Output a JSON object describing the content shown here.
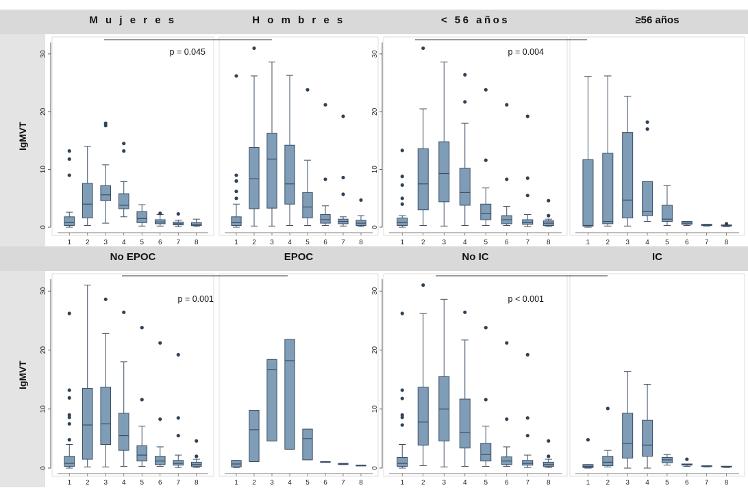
{
  "figure": {
    "ylabel": "IgMVT",
    "colors": {
      "box": "#7f9db7",
      "stroke": "#3a4d63",
      "outlier": "#2e4357",
      "band": "#d9d9d9",
      "panel": "#ffffff"
    }
  },
  "chart_data": [
    {
      "type": "box",
      "group": "top-left",
      "p_value": "p = 0.045",
      "ylabel": "IgMVT",
      "ylim": [
        0,
        32
      ],
      "yticks": [
        0,
        10,
        20,
        30
      ],
      "categories": [
        "1",
        "2",
        "3",
        "4",
        "5",
        "6",
        "7",
        "8"
      ],
      "panels": [
        {
          "title": "M u j e r e s",
          "boxes": [
            {
              "cat": "1",
              "min": 0,
              "q1": 0.3,
              "median": 0.8,
              "q3": 1.8,
              "max": 2.6,
              "outliers": [
                9,
                11.8,
                13.2
              ]
            },
            {
              "cat": "2",
              "min": 0.3,
              "q1": 1.6,
              "median": 4,
              "q3": 7.6,
              "max": 14
            },
            {
              "cat": "3",
              "min": 0.7,
              "q1": 4.6,
              "median": 5.6,
              "q3": 7.2,
              "max": 10.8,
              "outliers": [
                17.6,
                18
              ]
            },
            {
              "cat": "4",
              "min": 1.8,
              "q1": 3.2,
              "median": 3.8,
              "q3": 5.8,
              "max": 7.9,
              "outliers": [
                13.2,
                14.5
              ]
            },
            {
              "cat": "5",
              "min": 0.2,
              "q1": 0.8,
              "median": 1.5,
              "q3": 2.7,
              "max": 3.9
            },
            {
              "cat": "6",
              "min": 0.2,
              "q1": 0.6,
              "median": 0.9,
              "q3": 1.3,
              "max": 2.2,
              "outliers": [
                2.4
              ]
            },
            {
              "cat": "7",
              "min": 0.1,
              "q1": 0.4,
              "median": 0.6,
              "q3": 0.9,
              "max": 1.2,
              "outliers": [
                2.3
              ]
            },
            {
              "cat": "8",
              "min": 0.1,
              "q1": 0.3,
              "median": 0.5,
              "q3": 0.8,
              "max": 1.4
            }
          ]
        },
        {
          "title": "H o m b r e s",
          "boxes": [
            {
              "cat": "1",
              "min": 0,
              "q1": 0.3,
              "median": 0.8,
              "q3": 1.8,
              "max": 4,
              "outliers": [
                5,
                6.2,
                8,
                9,
                26.2
              ]
            },
            {
              "cat": "2",
              "min": 0.2,
              "q1": 3.2,
              "median": 8.4,
              "q3": 13.8,
              "max": 26.2,
              "outliers": [
                31
              ]
            },
            {
              "cat": "3",
              "min": 0.2,
              "q1": 3.3,
              "median": 11.8,
              "q3": 16.3,
              "max": 28.6
            },
            {
              "cat": "4",
              "min": 0.3,
              "q1": 4,
              "median": 7.5,
              "q3": 14.2,
              "max": 26.3
            },
            {
              "cat": "5",
              "min": 0.3,
              "q1": 1.6,
              "median": 3.5,
              "q3": 6,
              "max": 11.6,
              "outliers": [
                23.8
              ]
            },
            {
              "cat": "6",
              "min": 0.3,
              "q1": 0.7,
              "median": 1.3,
              "q3": 2.2,
              "max": 3.7,
              "outliers": [
                8.3,
                21.2
              ]
            },
            {
              "cat": "7",
              "min": 0.2,
              "q1": 0.6,
              "median": 1,
              "q3": 1.4,
              "max": 1.8,
              "outliers": [
                5.7,
                8.6,
                19.2
              ]
            },
            {
              "cat": "8",
              "min": 0.1,
              "q1": 0.3,
              "median": 0.7,
              "q3": 1.2,
              "max": 2,
              "outliers": [
                4.7
              ]
            }
          ]
        }
      ]
    },
    {
      "type": "box",
      "group": "top-right",
      "p_value": "p = 0.004",
      "ylabel": "",
      "ylim": [
        0,
        32
      ],
      "yticks": [
        0,
        10,
        20,
        30
      ],
      "categories": [
        "1",
        "2",
        "3",
        "4",
        "5",
        "6",
        "7",
        "8"
      ],
      "panels": [
        {
          "title": "< 56 años",
          "boxes": [
            {
              "cat": "1",
              "min": 0,
              "q1": 0.3,
              "median": 0.8,
              "q3": 1.6,
              "max": 2,
              "outliers": [
                4,
                5,
                7.3,
                8.8,
                13.3
              ]
            },
            {
              "cat": "2",
              "min": 0.3,
              "q1": 3,
              "median": 7.5,
              "q3": 13.6,
              "max": 20.5,
              "outliers": [
                31
              ]
            },
            {
              "cat": "3",
              "min": 0.2,
              "q1": 4.4,
              "median": 9.3,
              "q3": 14.8,
              "max": 28.6
            },
            {
              "cat": "4",
              "min": 0.3,
              "q1": 3.8,
              "median": 6,
              "q3": 10.2,
              "max": 18,
              "outliers": [
                21.7,
                26.4
              ]
            },
            {
              "cat": "5",
              "min": 0.3,
              "q1": 1.3,
              "median": 2.4,
              "q3": 4,
              "max": 6.8,
              "outliers": [
                11.6,
                23.8
              ]
            },
            {
              "cat": "6",
              "min": 0.3,
              "q1": 0.6,
              "median": 1.3,
              "q3": 2,
              "max": 3.6,
              "outliers": [
                8.3,
                21.2
              ]
            },
            {
              "cat": "7",
              "min": 0.1,
              "q1": 0.5,
              "median": 0.8,
              "q3": 1.3,
              "max": 2.2,
              "outliers": [
                5.5,
                8.5,
                19.2
              ]
            },
            {
              "cat": "8",
              "min": 0.1,
              "q1": 0.3,
              "median": 0.7,
              "q3": 1.1,
              "max": 1.4,
              "outliers": [
                2,
                4.6
              ]
            }
          ]
        },
        {
          "title": "≥56 años",
          "boxes": [
            {
              "cat": "1",
              "min": 0,
              "q1": 0.2,
              "median": 0.3,
              "q3": 11.7,
              "max": 26.1
            },
            {
              "cat": "2",
              "min": 0.2,
              "q1": 0.6,
              "median": 1,
              "q3": 12.8,
              "max": 26.2
            },
            {
              "cat": "3",
              "min": 0.2,
              "q1": 1.6,
              "median": 4.7,
              "q3": 16.4,
              "max": 22.7
            },
            {
              "cat": "4",
              "min": 1,
              "q1": 2,
              "median": 2.7,
              "q3": 7.9,
              "max": 7.9,
              "outliers": [
                17,
                18.2
              ]
            },
            {
              "cat": "5",
              "min": 0.3,
              "q1": 1,
              "median": 1.4,
              "q3": 3.8,
              "max": 7.2
            },
            {
              "cat": "6",
              "min": 0.3,
              "q1": 0.5,
              "median": 0.7,
              "q3": 1,
              "max": 1
            },
            {
              "cat": "7",
              "min": 0.2,
              "q1": 0.3,
              "median": 0.4,
              "q3": 0.5,
              "max": 0.5
            },
            {
              "cat": "8",
              "min": 0.1,
              "q1": 0.2,
              "median": 0.3,
              "q3": 0.4,
              "max": 0.4,
              "outliers": [
                0.6
              ]
            }
          ]
        }
      ]
    },
    {
      "type": "box",
      "group": "bottom-left",
      "p_value": "p = 0.001",
      "ylabel": "IgMVT",
      "ylim": [
        0,
        32
      ],
      "yticks": [
        0,
        10,
        20,
        30
      ],
      "categories": [
        "1",
        "2",
        "3",
        "4",
        "5",
        "6",
        "7",
        "8"
      ],
      "panels": [
        {
          "title": "No EPOC",
          "boxes": [
            {
              "cat": "1",
              "min": 0,
              "q1": 0.3,
              "median": 0.8,
              "q3": 2,
              "max": 4,
              "outliers": [
                4.8,
                7.5,
                8.6,
                9,
                11.9,
                13.2,
                26.2
              ]
            },
            {
              "cat": "2",
              "min": 0.2,
              "q1": 1.5,
              "median": 7.3,
              "q3": 13.5,
              "max": 31
            },
            {
              "cat": "3",
              "min": 0.2,
              "q1": 4,
              "median": 7.5,
              "q3": 13.7,
              "max": 22.8,
              "outliers": [
                28.6
              ]
            },
            {
              "cat": "4",
              "min": 0.3,
              "q1": 3,
              "median": 5.5,
              "q3": 9.3,
              "max": 18,
              "outliers": [
                26.4
              ]
            },
            {
              "cat": "5",
              "min": 0.3,
              "q1": 1.2,
              "median": 2.2,
              "q3": 3.8,
              "max": 7.1,
              "outliers": [
                11.6,
                23.8
              ]
            },
            {
              "cat": "6",
              "min": 0.3,
              "q1": 0.6,
              "median": 1.2,
              "q3": 2,
              "max": 3.6,
              "outliers": [
                8.3,
                21.2
              ]
            },
            {
              "cat": "7",
              "min": 0.1,
              "q1": 0.5,
              "median": 0.8,
              "q3": 1.3,
              "max": 2.2,
              "outliers": [
                5.5,
                8.5,
                19.2
              ]
            },
            {
              "cat": "8",
              "min": 0.1,
              "q1": 0.3,
              "median": 0.6,
              "q3": 1,
              "max": 1.5,
              "outliers": [
                2,
                4.6
              ]
            }
          ]
        },
        {
          "title": "EPOC",
          "boxes": [
            {
              "cat": "1",
              "min": 0.1,
              "q1": 0.2,
              "median": 0.7,
              "q3": 1.3,
              "max": 1.3
            },
            {
              "cat": "2",
              "min": 1.1,
              "q1": 1.1,
              "median": 6.5,
              "q3": 9.8,
              "max": 9.8
            },
            {
              "cat": "3",
              "min": 4.6,
              "q1": 4.6,
              "median": 16.7,
              "q3": 18.4,
              "max": 18.4
            },
            {
              "cat": "4",
              "min": 3.2,
              "q1": 3.2,
              "median": 18.2,
              "q3": 21.8,
              "max": 21.8
            },
            {
              "cat": "5",
              "min": 1.4,
              "q1": 1.4,
              "median": 5,
              "q3": 6.6,
              "max": 6.6
            },
            {
              "cat": "6",
              "min": 1,
              "q1": 1,
              "median": 1,
              "q3": 1.1,
              "max": 1.1
            },
            {
              "cat": "7",
              "min": 0.6,
              "q1": 0.6,
              "median": 0.7,
              "q3": 0.8,
              "max": 0.8
            },
            {
              "cat": "8",
              "min": 0.4,
              "q1": 0.4,
              "median": 0.5,
              "q3": 0.5,
              "max": 0.5
            }
          ]
        }
      ]
    },
    {
      "type": "box",
      "group": "bottom-right",
      "p_value": "p < 0.001",
      "ylabel": "",
      "ylim": [
        0,
        32
      ],
      "yticks": [
        0,
        10,
        20,
        30
      ],
      "categories": [
        "1",
        "2",
        "3",
        "4",
        "5",
        "6",
        "7",
        "8"
      ],
      "panels": [
        {
          "title": "No IC",
          "boxes": [
            {
              "cat": "1",
              "min": 0,
              "q1": 0.3,
              "median": 0.8,
              "q3": 1.8,
              "max": 4,
              "outliers": [
                7.3,
                8.6,
                9,
                11.8,
                13.2,
                26.2
              ]
            },
            {
              "cat": "2",
              "min": 0.4,
              "q1": 3.9,
              "median": 7.8,
              "q3": 13.7,
              "max": 26.2,
              "outliers": [
                31
              ]
            },
            {
              "cat": "3",
              "min": 0.2,
              "q1": 4.6,
              "median": 10,
              "q3": 15.5,
              "max": 28.6
            },
            {
              "cat": "4",
              "min": 0.3,
              "q1": 3.4,
              "median": 6,
              "q3": 11.7,
              "max": 21.7,
              "outliers": [
                26.4
              ]
            },
            {
              "cat": "5",
              "min": 0.3,
              "q1": 1.2,
              "median": 2.3,
              "q3": 4.2,
              "max": 7.1,
              "outliers": [
                11.6,
                23.8
              ]
            },
            {
              "cat": "6",
              "min": 0.3,
              "q1": 0.6,
              "median": 1.2,
              "q3": 1.9,
              "max": 3.6,
              "outliers": [
                8.3,
                21.2
              ]
            },
            {
              "cat": "7",
              "min": 0.1,
              "q1": 0.5,
              "median": 0.8,
              "q3": 1.3,
              "max": 2.2,
              "outliers": [
                5.5,
                8.5,
                19.2
              ]
            },
            {
              "cat": "8",
              "min": 0.1,
              "q1": 0.3,
              "median": 0.6,
              "q3": 1,
              "max": 1.5,
              "outliers": [
                2,
                4.6
              ]
            }
          ]
        },
        {
          "title": "IC",
          "boxes": [
            {
              "cat": "1",
              "min": 0,
              "q1": 0.1,
              "median": 0.3,
              "q3": 0.6,
              "max": 0.6,
              "outliers": [
                4.8
              ]
            },
            {
              "cat": "2",
              "min": 0.2,
              "q1": 0.4,
              "median": 1,
              "q3": 2,
              "max": 3,
              "outliers": [
                10.1
              ]
            },
            {
              "cat": "3",
              "min": 0,
              "q1": 1.7,
              "median": 4.2,
              "q3": 9.3,
              "max": 16.4
            },
            {
              "cat": "4",
              "min": 0,
              "q1": 2,
              "median": 3.9,
              "q3": 8.1,
              "max": 14.2
            },
            {
              "cat": "5",
              "min": 0.5,
              "q1": 0.9,
              "median": 1.4,
              "q3": 1.8,
              "max": 2.3
            },
            {
              "cat": "6",
              "min": 0.3,
              "q1": 0.5,
              "median": 0.6,
              "q3": 0.7,
              "max": 0.7,
              "outliers": [
                1.5
              ]
            },
            {
              "cat": "7",
              "min": 0.2,
              "q1": 0.3,
              "median": 0.3,
              "q3": 0.4,
              "max": 0.4
            },
            {
              "cat": "8",
              "min": 0.1,
              "q1": 0.2,
              "median": 0.3,
              "q3": 0.3,
              "max": 0.3
            }
          ]
        }
      ]
    }
  ]
}
